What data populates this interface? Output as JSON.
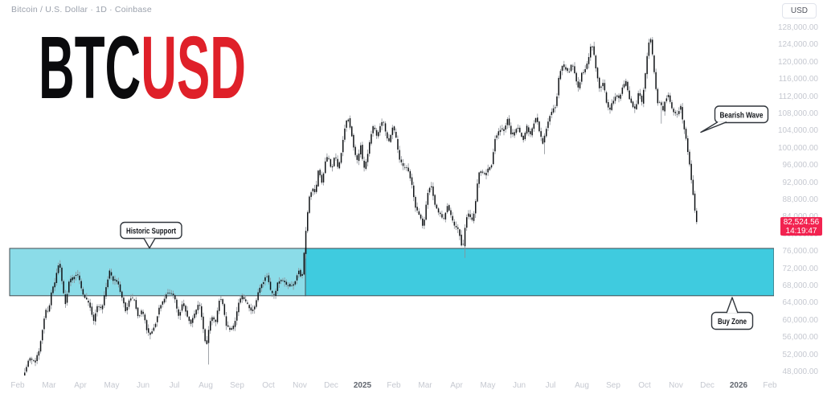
{
  "header": {
    "symbol_title": "Bitcoin / U.S. Dollar · 1D · Coinbase"
  },
  "toolbar": {
    "currency_button": "USD"
  },
  "watermark": {
    "btc": "BTC",
    "usd": "USD",
    "btc_color": "#0b0b0d",
    "usd_color": "#df2029"
  },
  "annotations": {
    "historic_support": "Historic Support",
    "bearish_wave": "Bearish Wave",
    "buy_zone": "Buy Zone"
  },
  "price_label": {
    "price": "82,524.56",
    "countdown": "14:19:47",
    "bg": "#f22350"
  },
  "price_axis": {
    "labels": [
      "128,000.00",
      "124,000.00",
      "120,000.00",
      "116,000.00",
      "112,000.00",
      "108,000.00",
      "104,000.00",
      "100,000.00",
      "96,000.00",
      "92,000.00",
      "88,000.00",
      "84,000.00",
      "80,000.00",
      "76,000.00",
      "72,000.00",
      "68,000.00",
      "64,000.00",
      "60,000.00",
      "56,000.00",
      "52,000.00",
      "48,000.00"
    ]
  },
  "time_axis": {
    "labels": [
      "Feb",
      "Mar",
      "Apr",
      "May",
      "Jun",
      "Jul",
      "Aug",
      "Sep",
      "Oct",
      "Nov",
      "Dec",
      "2025",
      "Feb",
      "Mar",
      "Apr",
      "May",
      "Jun",
      "Jul",
      "Aug",
      "Sep",
      "Oct",
      "Nov",
      "Dec",
      "2026",
      "Feb"
    ],
    "bold_labels": [
      "2025",
      "2026"
    ]
  },
  "chart_data": {
    "type": "candlestick",
    "symbol": "BTCUSD",
    "title": "Bitcoin / U.S. Dollar",
    "interval": "1D",
    "exchange": "Coinbase",
    "grid": false,
    "legend_position": "none",
    "y_axis": {
      "unit": "USD",
      "tick_min": 48000,
      "tick_max": 128000,
      "tick_step": 4000
    },
    "x_axis": {
      "start": "Feb 2024",
      "end": "Feb 2026"
    },
    "last_price": 82524.56,
    "candle_body_color": "#0f1215",
    "candle_wick_color": "#8a8f96",
    "buy_zone": {
      "price_low_k": 65.8,
      "price_high_k": 76.8,
      "color_left": "#8bdce8",
      "color_right": "#3fcbdf",
      "border_color": "#454c52"
    },
    "anchors_x_price_k": [
      [
        30,
        47.2
      ],
      [
        34,
        49.5
      ],
      [
        38,
        51.5
      ],
      [
        44,
        51.0
      ],
      [
        50,
        52.0
      ],
      [
        54,
        57.5
      ],
      [
        58,
        62.5
      ],
      [
        62,
        62.0
      ],
      [
        66,
        68.0
      ],
      [
        70,
        69.5
      ],
      [
        75,
        73.5
      ],
      [
        79,
        68.0
      ],
      [
        83,
        63.5
      ],
      [
        88,
        69.5
      ],
      [
        93,
        71.0
      ],
      [
        99,
        70.5
      ],
      [
        104,
        66.5
      ],
      [
        109,
        64.0
      ],
      [
        113,
        63.5
      ],
      [
        118,
        60.5
      ],
      [
        123,
        64.0
      ],
      [
        128,
        63.0
      ],
      [
        133,
        66.5
      ],
      [
        138,
        71.5
      ],
      [
        143,
        69.0
      ],
      [
        148,
        69.5
      ],
      [
        153,
        66.0
      ],
      [
        158,
        61.5
      ],
      [
        163,
        65.0
      ],
      [
        168,
        64.5
      ],
      [
        173,
        61.5
      ],
      [
        178,
        63.0
      ],
      [
        184,
        58.0
      ],
      [
        189,
        56.5
      ],
      [
        194,
        58.0
      ],
      [
        199,
        63.5
      ],
      [
        204,
        64.5
      ],
      [
        209,
        67.0
      ],
      [
        214,
        66.0
      ],
      [
        219,
        64.5
      ],
      [
        224,
        61.0
      ],
      [
        229,
        64.5
      ],
      [
        234,
        62.0
      ],
      [
        239,
        59.0
      ],
      [
        244,
        61.5
      ],
      [
        249,
        64.0
      ],
      [
        254,
        58.5
      ],
      [
        258,
        54.5
      ],
      [
        262,
        59.5
      ],
      [
        266,
        61.0
      ],
      [
        270,
        59.5
      ],
      [
        274,
        64.0
      ],
      [
        278,
        64.5
      ],
      [
        283,
        59.5
      ],
      [
        288,
        58.0
      ],
      [
        293,
        59.5
      ],
      [
        298,
        63.0
      ],
      [
        303,
        65.5
      ],
      [
        308,
        64.5
      ],
      [
        313,
        62.5
      ],
      [
        318,
        63.5
      ],
      [
        323,
        66.0
      ],
      [
        328,
        68.5
      ],
      [
        333,
        70.5
      ],
      [
        338,
        67.5
      ],
      [
        343,
        66.5
      ],
      [
        348,
        69.0
      ],
      [
        353,
        69.5
      ],
      [
        358,
        67.5
      ],
      [
        363,
        68.5
      ],
      [
        368,
        69.0
      ],
      [
        373,
        72.0
      ],
      [
        377,
        69.5
      ],
      [
        380,
        75.5
      ],
      [
        383,
        82.0
      ],
      [
        386,
        88.5
      ],
      [
        390,
        91.0
      ],
      [
        394,
        89.5
      ],
      [
        398,
        96.5
      ],
      [
        402,
        92.0
      ],
      [
        406,
        96.0
      ],
      [
        410,
        98.0
      ],
      [
        414,
        94.5
      ],
      [
        418,
        98.5
      ],
      [
        422,
        96.0
      ],
      [
        426,
        99.5
      ],
      [
        430,
        104.0
      ],
      [
        434,
        107.5
      ],
      [
        438,
        104.0
      ],
      [
        442,
        99.0
      ],
      [
        446,
        97.5
      ],
      [
        450,
        101.5
      ],
      [
        454,
        95.0
      ],
      [
        458,
        98.0
      ],
      [
        462,
        102.0
      ],
      [
        466,
        104.5
      ],
      [
        470,
        103.0
      ],
      [
        474,
        105.5
      ],
      [
        478,
        107.0
      ],
      [
        482,
        103.5
      ],
      [
        486,
        101.5
      ],
      [
        490,
        104.5
      ],
      [
        494,
        102.5
      ],
      [
        498,
        97.5
      ],
      [
        503,
        96.0
      ],
      [
        508,
        96.5
      ],
      [
        513,
        92.0
      ],
      [
        518,
        86.5
      ],
      [
        523,
        84.0
      ],
      [
        528,
        82.0
      ],
      [
        533,
        90.0
      ],
      [
        538,
        91.5
      ],
      [
        543,
        86.5
      ],
      [
        548,
        84.0
      ],
      [
        553,
        83.5
      ],
      [
        558,
        87.0
      ],
      [
        563,
        84.5
      ],
      [
        568,
        82.0
      ],
      [
        573,
        79.5
      ],
      [
        577,
        76.0
      ],
      [
        581,
        83.5
      ],
      [
        585,
        85.0
      ],
      [
        589,
        84.0
      ],
      [
        593,
        87.5
      ],
      [
        597,
        94.0
      ],
      [
        601,
        94.5
      ],
      [
        605,
        93.5
      ],
      [
        609,
        95.0
      ],
      [
        613,
        97.0
      ],
      [
        617,
        102.5
      ],
      [
        621,
        103.5
      ],
      [
        625,
        105.0
      ],
      [
        629,
        103.5
      ],
      [
        633,
        106.5
      ],
      [
        637,
        104.0
      ],
      [
        641,
        103.5
      ],
      [
        645,
        105.5
      ],
      [
        649,
        104.0
      ],
      [
        653,
        101.5
      ],
      [
        657,
        104.5
      ],
      [
        661,
        103.0
      ],
      [
        665,
        105.5
      ],
      [
        669,
        108.0
      ],
      [
        673,
        104.5
      ],
      [
        677,
        101.0
      ],
      [
        681,
        104.0
      ],
      [
        685,
        107.5
      ],
      [
        689,
        108.5
      ],
      [
        693,
        110.0
      ],
      [
        697,
        118.0
      ],
      [
        701,
        119.5
      ],
      [
        705,
        118.5
      ],
      [
        709,
        117.5
      ],
      [
        713,
        119.0
      ],
      [
        717,
        117.0
      ],
      [
        721,
        114.5
      ],
      [
        725,
        117.5
      ],
      [
        729,
        118.5
      ],
      [
        733,
        120.5
      ],
      [
        737,
        123.5
      ],
      [
        740,
        122.0
      ],
      [
        744,
        117.5
      ],
      [
        748,
        113.5
      ],
      [
        752,
        116.0
      ],
      [
        756,
        111.5
      ],
      [
        760,
        108.5
      ],
      [
        764,
        110.5
      ],
      [
        768,
        112.5
      ],
      [
        772,
        111.0
      ],
      [
        776,
        114.5
      ],
      [
        780,
        116.5
      ],
      [
        784,
        112.0
      ],
      [
        788,
        110.0
      ],
      [
        792,
        109.0
      ],
      [
        796,
        112.5
      ],
      [
        800,
        110.5
      ],
      [
        804,
        117.5
      ],
      [
        808,
        124.5
      ],
      [
        811,
        125.5
      ],
      [
        814,
        121.0
      ],
      [
        817,
        114.5
      ],
      [
        820,
        109.5
      ],
      [
        823,
        110.5
      ],
      [
        826,
        108.5
      ],
      [
        829,
        111.5
      ],
      [
        833,
        112.5
      ],
      [
        837,
        110.0
      ],
      [
        841,
        108.5
      ],
      [
        845,
        107.0
      ],
      [
        848,
        110.0
      ],
      [
        851,
        106.0
      ],
      [
        854,
        103.5
      ],
      [
        857,
        99.5
      ],
      [
        860,
        96.0
      ],
      [
        863,
        91.5
      ],
      [
        865,
        88.0
      ],
      [
        867,
        84.0
      ],
      [
        868,
        82.8
      ]
    ],
    "wick_spikes_x_price_k": [
      [
        258,
        49.8
      ],
      [
        577,
        74.6
      ],
      [
        677,
        98.7
      ],
      [
        822,
        105.8
      ]
    ]
  }
}
